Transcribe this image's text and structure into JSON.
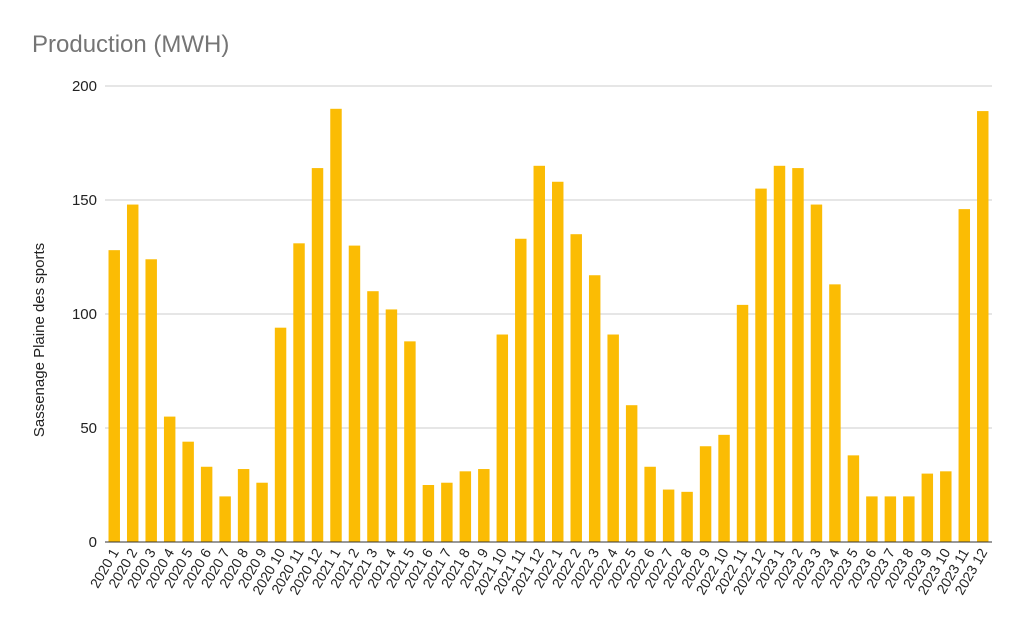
{
  "chart_data": {
    "type": "bar",
    "title": "Production (MWH)",
    "xlabel": "",
    "ylabel": "Sassenage Plaine des sports",
    "ylim": [
      0,
      200
    ],
    "yticks": [
      "0",
      "50",
      "100",
      "150",
      "200"
    ],
    "grid": true,
    "color": "#fbbc04",
    "categories": [
      "2020 1",
      "2020 2",
      "2020 3",
      "2020 4",
      "2020 5",
      "2020 6",
      "2020 7",
      "2020 8",
      "2020 9",
      "2020 10",
      "2020 11",
      "2020 12",
      "2021 1",
      "2021 2",
      "2021 3",
      "2021 4",
      "2021 5",
      "2021 6",
      "2021 7",
      "2021 8",
      "2021 9",
      "2021 10",
      "2021 11",
      "2021 12",
      "2022 1",
      "2022 2",
      "2022 3",
      "2022 4",
      "2022 5",
      "2022 6",
      "2022 7",
      "2022 8",
      "2022 9",
      "2022 10",
      "2022 11",
      "2022 12",
      "2023 1",
      "2023 2",
      "2023 3",
      "2023 4",
      "2023 5",
      "2023 6",
      "2023 7",
      "2023 8",
      "2023 9",
      "2023 10",
      "2023 11",
      "2023 12"
    ],
    "values": [
      128,
      148,
      124,
      55,
      44,
      33,
      20,
      32,
      26,
      94,
      131,
      164,
      190,
      130,
      110,
      102,
      88,
      25,
      26,
      31,
      32,
      91,
      133,
      165,
      158,
      135,
      117,
      91,
      60,
      33,
      23,
      22,
      42,
      47,
      104,
      155,
      165,
      164,
      148,
      113,
      38,
      20,
      20,
      20,
      30,
      31,
      146,
      189
    ]
  }
}
